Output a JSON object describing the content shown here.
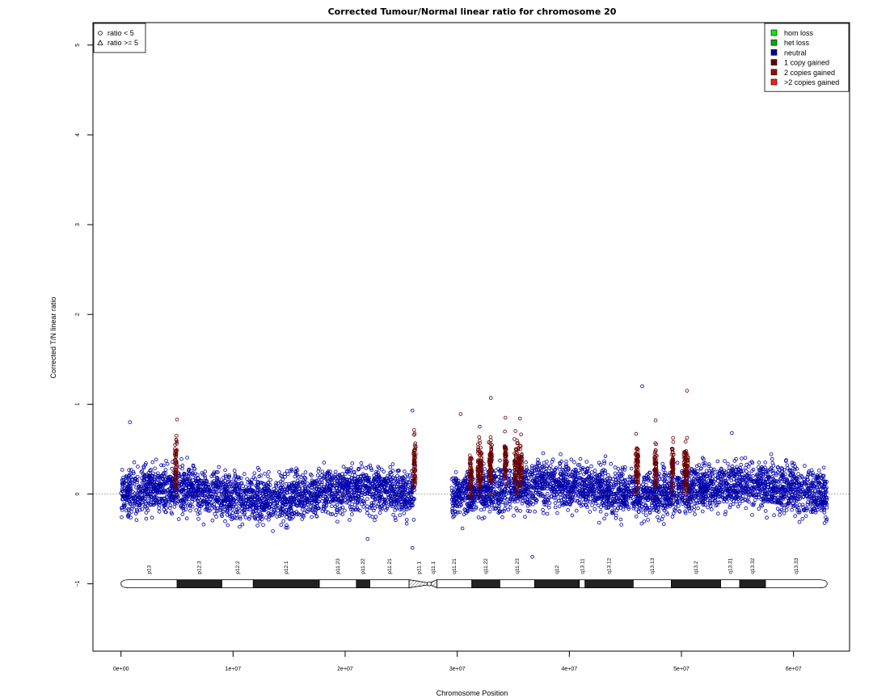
{
  "chart_data": {
    "type": "scatter",
    "title": "Corrected Tumour/Normal linear ratio for chromosome  20",
    "xlabel": "Chromosome Position",
    "ylabel": "Corrected T/N linear ratio",
    "xlim": [
      -2500000,
      65000000
    ],
    "ylim": [
      -1.75,
      5.25
    ],
    "x_ticks": [
      {
        "value": 0,
        "label": "0e+00"
      },
      {
        "value": 10000000,
        "label": "1e+07"
      },
      {
        "value": 20000000,
        "label": "2e+07"
      },
      {
        "value": 30000000,
        "label": "3e+07"
      },
      {
        "value": 40000000,
        "label": "4e+07"
      },
      {
        "value": 50000000,
        "label": "5e+07"
      },
      {
        "value": 60000000,
        "label": "6e+07"
      }
    ],
    "y_ticks": [
      {
        "value": -1,
        "label": "−1"
      },
      {
        "value": 0,
        "label": "0"
      },
      {
        "value": 1,
        "label": "1"
      },
      {
        "value": 2,
        "label": "2"
      },
      {
        "value": 3,
        "label": "3"
      },
      {
        "value": 4,
        "label": "4"
      },
      {
        "value": 5,
        "label": "5"
      }
    ],
    "reference_line_y": 0,
    "shape_legend": {
      "placement": "top-left",
      "entries": [
        {
          "label": "ratio < 5",
          "shape": "circle"
        },
        {
          "label": "ratio >= 5",
          "shape": "triangle"
        }
      ]
    },
    "legend": {
      "placement": "top-right",
      "entries": [
        {
          "label": "hom loss",
          "color": "#00ee00"
        },
        {
          "label": "het loss",
          "color": "#00aa00"
        },
        {
          "label": "neutral",
          "color": "#0000aa"
        },
        {
          "label": "1 copy gained",
          "color": "#6b0000"
        },
        {
          "label": "2 copies gained",
          "color": "#aa0000"
        },
        {
          "label": ">2 copies gained",
          "color": "#ff1a1a"
        }
      ]
    },
    "series": [
      {
        "name": "neutral",
        "color": "#0000aa",
        "regions": [
          {
            "start": 0,
            "end": 26200000,
            "mean": 0.0,
            "spread": 0.18
          },
          {
            "start": 29500000,
            "end": 63000000,
            "mean": 0.05,
            "spread": 0.18
          }
        ],
        "outliers": [
          {
            "x": 800000,
            "y": 0.8
          },
          {
            "x": 26000000,
            "y": 0.93
          },
          {
            "x": 26000000,
            "y": -0.6
          },
          {
            "x": 36700000,
            "y": -0.7
          },
          {
            "x": 46500000,
            "y": 1.2
          },
          {
            "x": 22000000,
            "y": -0.5
          },
          {
            "x": 32000000,
            "y": 0.75
          },
          {
            "x": 54500000,
            "y": 0.68
          }
        ]
      },
      {
        "name": "1 copy gained",
        "color": "#6b0000",
        "segments": [
          {
            "start": 4800000,
            "end": 5000000,
            "mean": 0.3
          },
          {
            "start": 26100000,
            "end": 26300000,
            "mean": 0.35
          },
          {
            "start": 31100000,
            "end": 31300000,
            "mean": 0.2
          },
          {
            "start": 31800000,
            "end": 32200000,
            "mean": 0.3
          },
          {
            "start": 32800000,
            "end": 33100000,
            "mean": 0.35
          },
          {
            "start": 34200000,
            "end": 34400000,
            "mean": 0.35
          },
          {
            "start": 35100000,
            "end": 35800000,
            "mean": 0.3
          },
          {
            "start": 45900000,
            "end": 46200000,
            "mean": 0.3
          },
          {
            "start": 47600000,
            "end": 47800000,
            "mean": 0.3
          },
          {
            "start": 49100000,
            "end": 49300000,
            "mean": 0.3
          },
          {
            "start": 50200000,
            "end": 50600000,
            "mean": 0.3
          }
        ],
        "outliers": [
          {
            "x": 30300000,
            "y": 0.89
          },
          {
            "x": 33000000,
            "y": 1.07
          },
          {
            "x": 34300000,
            "y": 0.85
          },
          {
            "x": 35600000,
            "y": 0.84
          },
          {
            "x": 50500000,
            "y": 1.15
          },
          {
            "x": 47700000,
            "y": 0.82
          },
          {
            "x": 5000000,
            "y": 0.83
          }
        ]
      }
    ],
    "ideogram": {
      "y": -1,
      "length": 63000000,
      "centromere": 27500000,
      "bands": [
        {
          "name": "p13",
          "start": 0,
          "end": 5000000,
          "stain": "white"
        },
        {
          "name": "p12.3",
          "start": 5000000,
          "end": 9000000,
          "stain": "black"
        },
        {
          "name": "p12.2",
          "start": 9000000,
          "end": 11800000,
          "stain": "white"
        },
        {
          "name": "p12.1",
          "start": 11800000,
          "end": 17700000,
          "stain": "black"
        },
        {
          "name": "p11.23",
          "start": 17700000,
          "end": 21000000,
          "stain": "white"
        },
        {
          "name": "p11.22",
          "start": 21000000,
          "end": 22200000,
          "stain": "black"
        },
        {
          "name": "p11.21",
          "start": 22200000,
          "end": 25700000,
          "stain": "white"
        },
        {
          "name": "p11.1",
          "start": 25700000,
          "end": 27500000,
          "stain": "acen"
        },
        {
          "name": "q11.1",
          "start": 27500000,
          "end": 28200000,
          "stain": "acen"
        },
        {
          "name": "q11.21",
          "start": 28200000,
          "end": 31300000,
          "stain": "white"
        },
        {
          "name": "q11.22",
          "start": 31300000,
          "end": 33800000,
          "stain": "black"
        },
        {
          "name": "q11.23",
          "start": 33800000,
          "end": 36900000,
          "stain": "white"
        },
        {
          "name": "q12",
          "start": 36900000,
          "end": 40900000,
          "stain": "black"
        },
        {
          "name": "q13.11",
          "start": 40900000,
          "end": 41400000,
          "stain": "white"
        },
        {
          "name": "q13.12",
          "start": 41400000,
          "end": 45700000,
          "stain": "black"
        },
        {
          "name": "q13.13",
          "start": 45700000,
          "end": 49100000,
          "stain": "white"
        },
        {
          "name": "q13.2",
          "start": 49100000,
          "end": 53500000,
          "stain": "black"
        },
        {
          "name": "q13.31",
          "start": 53500000,
          "end": 55200000,
          "stain": "white"
        },
        {
          "name": "q13.32",
          "start": 55200000,
          "end": 57500000,
          "stain": "black"
        },
        {
          "name": "q13.33",
          "start": 57500000,
          "end": 63000000,
          "stain": "white"
        }
      ]
    }
  }
}
